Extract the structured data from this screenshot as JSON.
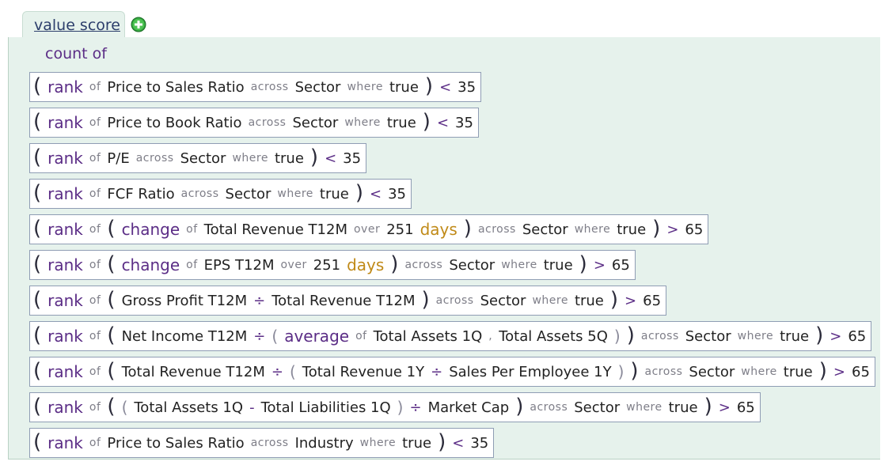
{
  "header": {
    "tab_label": "value score",
    "add_icon": "plus-circle-icon",
    "count_of": "count of"
  },
  "colors": {
    "panel_bg": "#e6f2ec",
    "function": "#5b2d86",
    "unit": "#c08a18"
  },
  "rows": [
    [
      {
        "t": "p",
        "v": "("
      },
      {
        "t": "fn",
        "v": "rank"
      },
      {
        "t": "kw",
        "v": "of"
      },
      {
        "t": "f",
        "v": "Price to Sales Ratio"
      },
      {
        "t": "kw",
        "v": "across"
      },
      {
        "t": "f",
        "v": "Sector"
      },
      {
        "t": "kw",
        "v": "where"
      },
      {
        "t": "f",
        "v": "true"
      },
      {
        "t": "p",
        "v": ")"
      },
      {
        "t": "op",
        "v": "<"
      },
      {
        "t": "num",
        "v": "35"
      }
    ],
    [
      {
        "t": "p",
        "v": "("
      },
      {
        "t": "fn",
        "v": "rank"
      },
      {
        "t": "kw",
        "v": "of"
      },
      {
        "t": "f",
        "v": "Price to Book Ratio"
      },
      {
        "t": "kw",
        "v": "across"
      },
      {
        "t": "f",
        "v": "Sector"
      },
      {
        "t": "kw",
        "v": "where"
      },
      {
        "t": "f",
        "v": "true"
      },
      {
        "t": "p",
        "v": ")"
      },
      {
        "t": "op",
        "v": "<"
      },
      {
        "t": "num",
        "v": "35"
      }
    ],
    [
      {
        "t": "p",
        "v": "("
      },
      {
        "t": "fn",
        "v": "rank"
      },
      {
        "t": "kw",
        "v": "of"
      },
      {
        "t": "f",
        "v": "P/E"
      },
      {
        "t": "kw",
        "v": "across"
      },
      {
        "t": "f",
        "v": "Sector"
      },
      {
        "t": "kw",
        "v": "where"
      },
      {
        "t": "f",
        "v": "true"
      },
      {
        "t": "p",
        "v": ")"
      },
      {
        "t": "op",
        "v": "<"
      },
      {
        "t": "num",
        "v": "35"
      }
    ],
    [
      {
        "t": "p",
        "v": "("
      },
      {
        "t": "fn",
        "v": "rank"
      },
      {
        "t": "kw",
        "v": "of"
      },
      {
        "t": "f",
        "v": "FCF Ratio"
      },
      {
        "t": "kw",
        "v": "across"
      },
      {
        "t": "f",
        "v": "Sector"
      },
      {
        "t": "kw",
        "v": "where"
      },
      {
        "t": "f",
        "v": "true"
      },
      {
        "t": "p",
        "v": ")"
      },
      {
        "t": "op",
        "v": "<"
      },
      {
        "t": "num",
        "v": "35"
      }
    ],
    [
      {
        "t": "p",
        "v": "("
      },
      {
        "t": "fn",
        "v": "rank"
      },
      {
        "t": "kw",
        "v": "of"
      },
      {
        "t": "p",
        "v": "("
      },
      {
        "t": "fn",
        "v": "change"
      },
      {
        "t": "kw",
        "v": "of"
      },
      {
        "t": "f",
        "v": "Total Revenue T12M"
      },
      {
        "t": "kw",
        "v": "over"
      },
      {
        "t": "num",
        "v": "251"
      },
      {
        "t": "unit",
        "v": "days"
      },
      {
        "t": "p",
        "v": ")"
      },
      {
        "t": "kw",
        "v": "across"
      },
      {
        "t": "f",
        "v": "Sector"
      },
      {
        "t": "kw",
        "v": "where"
      },
      {
        "t": "f",
        "v": "true"
      },
      {
        "t": "p",
        "v": ")"
      },
      {
        "t": "op",
        "v": ">"
      },
      {
        "t": "num",
        "v": "65"
      }
    ],
    [
      {
        "t": "p",
        "v": "("
      },
      {
        "t": "fn",
        "v": "rank"
      },
      {
        "t": "kw",
        "v": "of"
      },
      {
        "t": "p",
        "v": "("
      },
      {
        "t": "fn",
        "v": "change"
      },
      {
        "t": "kw",
        "v": "of"
      },
      {
        "t": "f",
        "v": "EPS T12M"
      },
      {
        "t": "kw",
        "v": "over"
      },
      {
        "t": "num",
        "v": "251"
      },
      {
        "t": "unit",
        "v": "days"
      },
      {
        "t": "p",
        "v": ")"
      },
      {
        "t": "kw",
        "v": "across"
      },
      {
        "t": "f",
        "v": "Sector"
      },
      {
        "t": "kw",
        "v": "where"
      },
      {
        "t": "f",
        "v": "true"
      },
      {
        "t": "p",
        "v": ")"
      },
      {
        "t": "op",
        "v": ">"
      },
      {
        "t": "num",
        "v": "65"
      }
    ],
    [
      {
        "t": "p",
        "v": "("
      },
      {
        "t": "fn",
        "v": "rank"
      },
      {
        "t": "kw",
        "v": "of"
      },
      {
        "t": "p",
        "v": "("
      },
      {
        "t": "f",
        "v": "Gross Profit T12M"
      },
      {
        "t": "op",
        "v": "÷"
      },
      {
        "t": "f",
        "v": "Total Revenue T12M"
      },
      {
        "t": "p",
        "v": ")"
      },
      {
        "t": "kw",
        "v": "across"
      },
      {
        "t": "f",
        "v": "Sector"
      },
      {
        "t": "kw",
        "v": "where"
      },
      {
        "t": "f",
        "v": "true"
      },
      {
        "t": "p",
        "v": ")"
      },
      {
        "t": "op",
        "v": ">"
      },
      {
        "t": "num",
        "v": "65"
      }
    ],
    [
      {
        "t": "p",
        "v": "("
      },
      {
        "t": "fn",
        "v": "rank"
      },
      {
        "t": "kw",
        "v": "of"
      },
      {
        "t": "p",
        "v": "("
      },
      {
        "t": "f",
        "v": "Net Income T12M"
      },
      {
        "t": "op",
        "v": "÷"
      },
      {
        "t": "ps",
        "v": "("
      },
      {
        "t": "fn",
        "v": "average"
      },
      {
        "t": "kw",
        "v": "of"
      },
      {
        "t": "f",
        "v": "Total Assets 1Q"
      },
      {
        "t": "kw",
        "v": ","
      },
      {
        "t": "f",
        "v": "Total Assets 5Q"
      },
      {
        "t": "ps",
        "v": ")"
      },
      {
        "t": "p",
        "v": ")"
      },
      {
        "t": "kw",
        "v": "across"
      },
      {
        "t": "f",
        "v": "Sector"
      },
      {
        "t": "kw",
        "v": "where"
      },
      {
        "t": "f",
        "v": "true"
      },
      {
        "t": "p",
        "v": ")"
      },
      {
        "t": "op",
        "v": ">"
      },
      {
        "t": "num",
        "v": "65"
      }
    ],
    [
      {
        "t": "p",
        "v": "("
      },
      {
        "t": "fn",
        "v": "rank"
      },
      {
        "t": "kw",
        "v": "of"
      },
      {
        "t": "p",
        "v": "("
      },
      {
        "t": "f",
        "v": "Total Revenue T12M"
      },
      {
        "t": "op",
        "v": "÷"
      },
      {
        "t": "ps",
        "v": "("
      },
      {
        "t": "f",
        "v": "Total Revenue 1Y"
      },
      {
        "t": "op",
        "v": "÷"
      },
      {
        "t": "f",
        "v": "Sales Per Employee 1Y"
      },
      {
        "t": "ps",
        "v": ")"
      },
      {
        "t": "p",
        "v": ")"
      },
      {
        "t": "kw",
        "v": "across"
      },
      {
        "t": "f",
        "v": "Sector"
      },
      {
        "t": "kw",
        "v": "where"
      },
      {
        "t": "f",
        "v": "true"
      },
      {
        "t": "p",
        "v": ")"
      },
      {
        "t": "op",
        "v": ">"
      },
      {
        "t": "num",
        "v": "65"
      }
    ],
    [
      {
        "t": "p",
        "v": "("
      },
      {
        "t": "fn",
        "v": "rank"
      },
      {
        "t": "kw",
        "v": "of"
      },
      {
        "t": "p",
        "v": "("
      },
      {
        "t": "ps",
        "v": "("
      },
      {
        "t": "f",
        "v": "Total Assets 1Q"
      },
      {
        "t": "op",
        "v": "-"
      },
      {
        "t": "f",
        "v": "Total Liabilities 1Q"
      },
      {
        "t": "ps",
        "v": ")"
      },
      {
        "t": "op",
        "v": "÷"
      },
      {
        "t": "f",
        "v": "Market Cap"
      },
      {
        "t": "p",
        "v": ")"
      },
      {
        "t": "kw",
        "v": "across"
      },
      {
        "t": "f",
        "v": "Sector"
      },
      {
        "t": "kw",
        "v": "where"
      },
      {
        "t": "f",
        "v": "true"
      },
      {
        "t": "p",
        "v": ")"
      },
      {
        "t": "op",
        "v": ">"
      },
      {
        "t": "num",
        "v": "65"
      }
    ],
    [
      {
        "t": "p",
        "v": "("
      },
      {
        "t": "fn",
        "v": "rank"
      },
      {
        "t": "kw",
        "v": "of"
      },
      {
        "t": "f",
        "v": "Price to Sales Ratio"
      },
      {
        "t": "kw",
        "v": "across"
      },
      {
        "t": "f",
        "v": "Industry"
      },
      {
        "t": "kw",
        "v": "where"
      },
      {
        "t": "f",
        "v": "true"
      },
      {
        "t": "p",
        "v": ")"
      },
      {
        "t": "op",
        "v": "<"
      },
      {
        "t": "num",
        "v": "35"
      }
    ]
  ]
}
